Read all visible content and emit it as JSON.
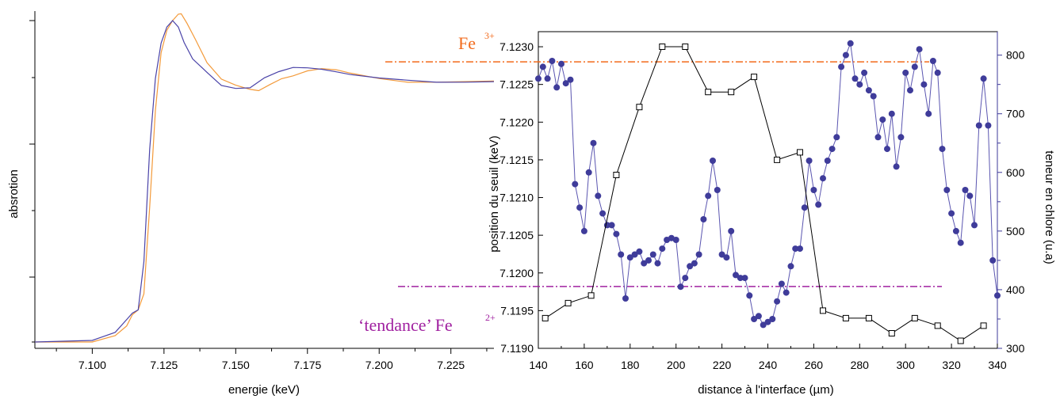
{
  "colors": {
    "orange": "#f39a3a",
    "blue": "#4a43a8",
    "point_blue": "#3f3c9a",
    "fe3_color": "#f26a1b",
    "fe2_color": "#a020a0",
    "black": "#000000"
  },
  "chart_data": [
    {
      "type": "line",
      "title": "",
      "xlabel": "energie (keV)",
      "ylabel": "absrotion",
      "xlim": [
        7.08,
        7.24
      ],
      "x_ticks": [
        "7.100",
        "7.125",
        "7.150",
        "7.175",
        "7.200",
        "7.225"
      ],
      "y_ticks_labeled": false,
      "series": [
        {
          "color": "orange",
          "x": [
            7.08,
            7.1,
            7.108,
            7.112,
            7.114,
            7.116,
            7.118,
            7.12,
            7.122,
            7.124,
            7.126,
            7.128,
            7.13,
            7.131,
            7.133,
            7.136,
            7.14,
            7.145,
            7.15,
            7.155,
            7.158,
            7.162,
            7.166,
            7.17,
            7.175,
            7.18,
            7.185,
            7.19,
            7.2,
            7.21,
            7.22,
            7.23,
            7.24
          ],
          "y": [
            0.0,
            0.0,
            0.02,
            0.05,
            0.085,
            0.1,
            0.15,
            0.42,
            0.72,
            0.9,
            0.97,
            1.0,
            1.02,
            1.02,
            0.99,
            0.94,
            0.87,
            0.82,
            0.8,
            0.785,
            0.78,
            0.8,
            0.82,
            0.83,
            0.845,
            0.85,
            0.845,
            0.835,
            0.82,
            0.81,
            0.81,
            0.81,
            0.81
          ]
        },
        {
          "color": "blue",
          "x": [
            7.08,
            7.1,
            7.108,
            7.112,
            7.114,
            7.116,
            7.118,
            7.12,
            7.122,
            7.124,
            7.126,
            7.128,
            7.13,
            7.132,
            7.135,
            7.14,
            7.145,
            7.15,
            7.155,
            7.16,
            7.165,
            7.17,
            7.175,
            7.18,
            7.185,
            7.19,
            7.2,
            7.21,
            7.22,
            7.23,
            7.24
          ],
          "y": [
            0.0,
            0.005,
            0.03,
            0.07,
            0.09,
            0.1,
            0.25,
            0.6,
            0.82,
            0.93,
            0.98,
            1.0,
            0.98,
            0.93,
            0.88,
            0.84,
            0.8,
            0.79,
            0.79,
            0.82,
            0.84,
            0.855,
            0.855,
            0.85,
            0.84,
            0.83,
            0.82,
            0.815,
            0.81,
            0.81,
            0.81
          ]
        }
      ]
    },
    {
      "type": "scatter",
      "title": "",
      "xlabel": "distance à l'interface (µm)",
      "ylabel": "position du seuil (keV)",
      "y2label": "teneur en chlore (u.a)",
      "xlim": [
        140,
        340
      ],
      "ylim": [
        7.119,
        7.1232
      ],
      "y2lim": [
        300,
        840
      ],
      "x_ticks": [
        140,
        160,
        180,
        200,
        220,
        240,
        260,
        280,
        300,
        320,
        340
      ],
      "y_ticks": [
        "7.1190",
        "7.1195",
        "7.1200",
        "7.1205",
        "7.1210",
        "7.1215",
        "7.1220",
        "7.1225",
        "7.1230"
      ],
      "y2_ticks": [
        300,
        400,
        500,
        600,
        700,
        800
      ],
      "series": [
        {
          "axis": "left",
          "marker": "open-square",
          "color": "black",
          "x": [
            143,
            153,
            163,
            174,
            184,
            194,
            204,
            214,
            224,
            234,
            244,
            254,
            264,
            274,
            284,
            294,
            304,
            314,
            324,
            334
          ],
          "y": [
            7.1194,
            7.1196,
            7.1197,
            7.1213,
            7.1222,
            7.123,
            7.123,
            7.1224,
            7.1224,
            7.1226,
            7.1215,
            7.1216,
            7.1195,
            7.1194,
            7.1194,
            7.1192,
            7.1194,
            7.1193,
            7.1191,
            7.1193
          ]
        },
        {
          "axis": "right",
          "marker": "filled-circle",
          "color": "point_blue",
          "x": [
            140,
            142,
            144,
            146,
            148,
            150,
            152,
            154,
            156,
            158,
            160,
            162,
            164,
            166,
            168,
            170,
            172,
            174,
            176,
            178,
            180,
            182,
            184,
            186,
            188,
            190,
            192,
            194,
            196,
            198,
            200,
            202,
            204,
            206,
            208,
            210,
            212,
            214,
            216,
            218,
            220,
            222,
            224,
            226,
            228,
            230,
            232,
            234,
            236,
            238,
            240,
            242,
            244,
            246,
            248,
            250,
            252,
            254,
            256,
            258,
            260,
            262,
            264,
            266,
            268,
            270,
            272,
            274,
            276,
            278,
            280,
            282,
            284,
            286,
            288,
            290,
            292,
            294,
            296,
            298,
            300,
            302,
            304,
            306,
            308,
            310,
            312,
            314,
            316,
            318,
            320,
            322,
            324,
            326,
            328,
            330,
            332,
            334,
            336,
            338,
            340
          ],
          "y": [
            760,
            780,
            760,
            790,
            745,
            785,
            752,
            758,
            580,
            540,
            500,
            600,
            650,
            560,
            530,
            510,
            510,
            495,
            460,
            385,
            455,
            460,
            465,
            445,
            450,
            460,
            445,
            470,
            485,
            488,
            485,
            405,
            420,
            440,
            445,
            460,
            520,
            560,
            620,
            570,
            460,
            455,
            500,
            425,
            420,
            420,
            390,
            350,
            355,
            340,
            345,
            350,
            380,
            410,
            395,
            440,
            470,
            470,
            540,
            620,
            570,
            545,
            590,
            620,
            640,
            660,
            780,
            800,
            820,
            760,
            750,
            770,
            740,
            730,
            660,
            690,
            640,
            700,
            610,
            660,
            770,
            740,
            780,
            810,
            750,
            700,
            790,
            770,
            640,
            570,
            530,
            500,
            480,
            570,
            560,
            510,
            680,
            760,
            680,
            450,
            390
          ]
        }
      ],
      "reference_lines": [
        {
          "y": 7.1228,
          "color": "fe3_color",
          "annotation_main": "Fe",
          "annotation_sup": "3+"
        },
        {
          "y": 7.11982,
          "color": "fe2_color",
          "annotation_main": "‘tendance’ Fe",
          "annotation_sup": "2+"
        }
      ]
    }
  ]
}
